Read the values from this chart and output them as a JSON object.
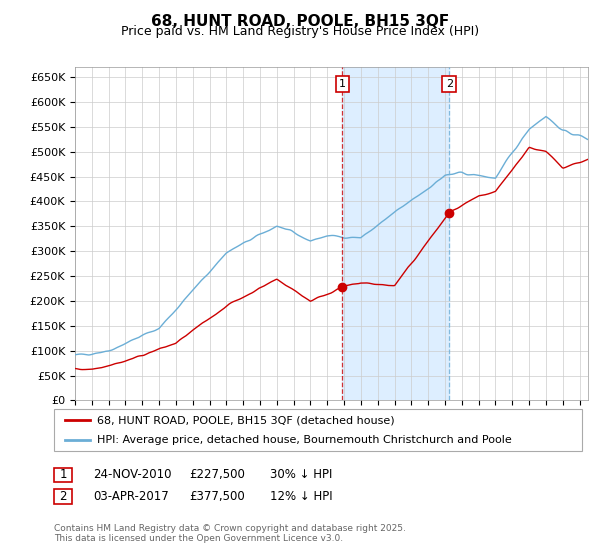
{
  "title": "68, HUNT ROAD, POOLE, BH15 3QF",
  "subtitle": "Price paid vs. HM Land Registry's House Price Index (HPI)",
  "xlim_start": 1995,
  "xlim_end": 2025.5,
  "ylim": [
    0,
    670000
  ],
  "yticks": [
    0,
    50000,
    100000,
    150000,
    200000,
    250000,
    300000,
    350000,
    400000,
    450000,
    500000,
    550000,
    600000,
    650000
  ],
  "ytick_labels": [
    "£0",
    "£50K",
    "£100K",
    "£150K",
    "£200K",
    "£250K",
    "£300K",
    "£350K",
    "£400K",
    "£450K",
    "£500K",
    "£550K",
    "£600K",
    "£650K"
  ],
  "sale1_date": "24-NOV-2010",
  "sale1_price": 227500,
  "sale1_year": 2010.9,
  "sale2_date": "03-APR-2017",
  "sale2_price": 377500,
  "sale2_year": 2017.25,
  "sale1_hpi_pct": "30% ↓ HPI",
  "sale2_hpi_pct": "12% ↓ HPI",
  "legend_line1": "68, HUNT ROAD, POOLE, BH15 3QF (detached house)",
  "legend_line2": "HPI: Average price, detached house, Bournemouth Christchurch and Poole",
  "footer": "Contains HM Land Registry data © Crown copyright and database right 2025.\nThis data is licensed under the Open Government Licence v3.0.",
  "line_color_property": "#cc0000",
  "line_color_hpi": "#6baed6",
  "shading_color": "#ddeeff",
  "background_color": "#ffffff",
  "grid_color": "#cccccc",
  "annotation_box_color": "#cc0000",
  "title_fontsize": 11,
  "subtitle_fontsize": 9
}
